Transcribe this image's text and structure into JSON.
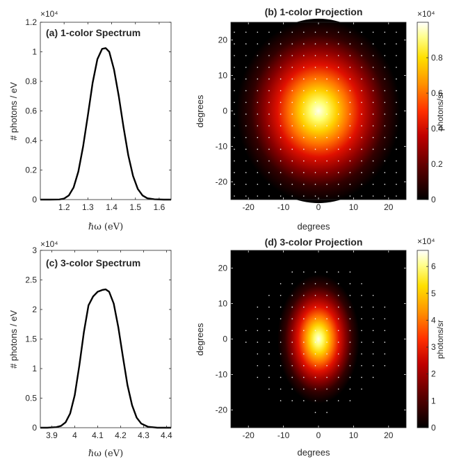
{
  "figure": {
    "panels": [
      "a",
      "b",
      "c",
      "d"
    ]
  },
  "chart_data": [
    {
      "id": "a",
      "type": "line",
      "title": "(a) 1-color Spectrum",
      "xlabel": "ℏω (eV)",
      "ylabel": "# photons / eV",
      "exponent_label": "×10⁴",
      "xlim": [
        1.1,
        1.65
      ],
      "ylim": [
        0,
        1.2
      ],
      "xticks": [
        1.2,
        1.3,
        1.4,
        1.5,
        1.6
      ],
      "xtick_labels": [
        "1.2",
        "1.3",
        "1.4",
        "1.5",
        "1.6"
      ],
      "yticks": [
        0,
        0.2,
        0.4,
        0.6,
        0.8,
        1.0,
        1.2
      ],
      "ytick_labels": [
        "0",
        "0.2",
        "0.4",
        "0.6",
        "0.8",
        "1",
        "1.2"
      ],
      "series": [
        {
          "color": "#000000",
          "x": [
            1.1,
            1.14,
            1.18,
            1.2,
            1.22,
            1.24,
            1.26,
            1.28,
            1.3,
            1.32,
            1.34,
            1.36,
            1.375,
            1.39,
            1.41,
            1.43,
            1.45,
            1.47,
            1.49,
            1.51,
            1.53,
            1.55,
            1.58,
            1.62,
            1.65
          ],
          "y": [
            0.0,
            0.0,
            0.001,
            0.007,
            0.028,
            0.082,
            0.19,
            0.36,
            0.57,
            0.79,
            0.95,
            1.02,
            1.025,
            1.0,
            0.88,
            0.7,
            0.49,
            0.3,
            0.16,
            0.072,
            0.028,
            0.009,
            0.002,
            0.0,
            0.0
          ]
        }
      ]
    },
    {
      "id": "b",
      "type": "heatmap",
      "title": "(b) 1-color Projection",
      "xlabel": "degrees",
      "ylabel": "degrees",
      "xlim": [
        -25,
        25
      ],
      "ylim": [
        -25,
        25
      ],
      "xticks": [
        -20,
        -10,
        0,
        10,
        20
      ],
      "xtick_labels": [
        "-20",
        "-10",
        "0",
        "10",
        "20"
      ],
      "yticks": [
        -20,
        -10,
        0,
        10,
        20
      ],
      "ytick_labels": [
        "-20",
        "-10",
        "0",
        "10",
        "20"
      ],
      "colormap": "hot",
      "peak": 0.95,
      "sigma_x": 9,
      "sigma_y": 10,
      "dots_r_max": 34,
      "colorbar": {
        "label": "photons/sr",
        "exponent_label": "×10⁴",
        "lim": [
          0,
          1.0
        ],
        "ticks": [
          0,
          0.2,
          0.4,
          0.6,
          0.8
        ],
        "tick_labels": [
          "0",
          "0.2",
          "0.4",
          "0.6",
          "0.8"
        ]
      }
    },
    {
      "id": "c",
      "type": "line",
      "title": "(c) 3-color Spectrum",
      "xlabel": "ℏω (eV)",
      "ylabel": "# photons / eV",
      "exponent_label": "×10⁴",
      "xlim": [
        3.85,
        4.42
      ],
      "ylim": [
        0,
        3
      ],
      "xticks": [
        3.9,
        4.0,
        4.1,
        4.2,
        4.3,
        4.4
      ],
      "xtick_labels": [
        "3.9",
        "4",
        "4.1",
        "4.2",
        "4.3",
        "4.4"
      ],
      "yticks": [
        0,
        0.5,
        1.0,
        1.5,
        2.0,
        2.5,
        3.0
      ],
      "ytick_labels": [
        "0",
        "0.5",
        "1",
        "1.5",
        "2",
        "2.5",
        "3"
      ],
      "series": [
        {
          "color": "#000000",
          "x": [
            3.85,
            3.88,
            3.92,
            3.94,
            3.96,
            3.98,
            4.0,
            4.02,
            4.04,
            4.06,
            4.08,
            4.1,
            4.12,
            4.135,
            4.15,
            4.17,
            4.19,
            4.21,
            4.23,
            4.25,
            4.27,
            4.29,
            4.32,
            4.36,
            4.42
          ],
          "y": [
            0.0,
            0.0,
            0.01,
            0.03,
            0.09,
            0.24,
            0.55,
            1.05,
            1.62,
            2.07,
            2.22,
            2.3,
            2.33,
            2.34,
            2.3,
            2.1,
            1.7,
            1.2,
            0.72,
            0.38,
            0.17,
            0.07,
            0.015,
            0.0,
            0.0
          ]
        }
      ]
    },
    {
      "id": "d",
      "type": "heatmap",
      "title": "(d) 3-color Projection",
      "xlabel": "degrees",
      "ylabel": "degrees",
      "xlim": [
        -25,
        25
      ],
      "ylim": [
        -25,
        25
      ],
      "xticks": [
        -20,
        -10,
        0,
        10,
        20
      ],
      "xtick_labels": [
        "-20",
        "-10",
        "0",
        "10",
        "20"
      ],
      "yticks": [
        -20,
        -10,
        0,
        10,
        20
      ],
      "ytick_labels": [
        "-20",
        "-10",
        "0",
        "10",
        "20"
      ],
      "colormap": "hot",
      "peak": 6.5,
      "sigma_x": 4.5,
      "sigma_y": 7,
      "dots_r_max": 21,
      "colorbar": {
        "label": "photons/sr",
        "exponent_label": "×10⁴",
        "lim": [
          0,
          6.6
        ],
        "ticks": [
          0,
          1,
          2,
          3,
          4,
          5,
          6
        ],
        "tick_labels": [
          "0",
          "1",
          "2",
          "3",
          "4",
          "5",
          "6"
        ]
      }
    }
  ]
}
